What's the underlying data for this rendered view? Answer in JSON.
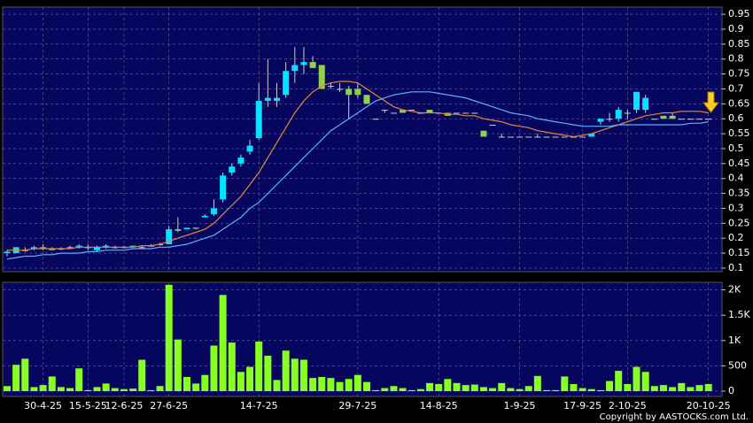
{
  "chart_data": {
    "type": "candlestick",
    "categories": [
      null,
      null,
      null,
      null,
      "30-4-25",
      null,
      null,
      null,
      null,
      "15-5-25",
      null,
      null,
      null,
      "12-6-25",
      null,
      null,
      null,
      null,
      "27-6-25",
      null,
      null,
      null,
      null,
      null,
      null,
      null,
      null,
      null,
      "14-7-25",
      null,
      null,
      null,
      null,
      null,
      null,
      null,
      null,
      null,
      null,
      "29-7-25",
      null,
      null,
      null,
      null,
      null,
      null,
      null,
      null,
      "14-8-25",
      null,
      null,
      null,
      null,
      null,
      null,
      null,
      null,
      "1-9-25",
      null,
      null,
      null,
      null,
      null,
      null,
      "17-9-25",
      null,
      null,
      null,
      null,
      "2-10-25",
      null,
      null,
      null,
      null,
      null,
      null,
      null,
      null,
      "20-10-25"
    ],
    "open": [
      0.15,
      0.15,
      0.16,
      0.165,
      0.17,
      0.165,
      0.165,
      0.17,
      0.17,
      0.17,
      0.16,
      0.17,
      0.17,
      0.17,
      0.17,
      0.17,
      0.175,
      0.18,
      0.18,
      0.23,
      0.23,
      0.235,
      0.27,
      0.28,
      0.33,
      0.42,
      0.45,
      0.49,
      0.535,
      0.66,
      0.66,
      0.68,
      0.76,
      0.78,
      0.79,
      0.78,
      0.71,
      0.7,
      0.7,
      0.7,
      0.68,
      0.6,
      0.63,
      0.62,
      0.63,
      0.63,
      0.62,
      0.63,
      0.62,
      0.62,
      0.62,
      0.62,
      0.62,
      0.56,
      0.58,
      0.54,
      0.54,
      0.54,
      0.54,
      0.54,
      0.54,
      0.54,
      0.54,
      0.54,
      0.54,
      0.54,
      0.59,
      0.6,
      0.6,
      0.62,
      0.63,
      0.63,
      0.6,
      0.61,
      0.61,
      0.6,
      0.6,
      0.6,
      0.6
    ],
    "high": [
      0.16,
      0.17,
      0.17,
      0.175,
      0.18,
      0.17,
      0.17,
      0.175,
      0.18,
      0.18,
      0.175,
      0.18,
      0.175,
      0.175,
      0.175,
      0.175,
      0.18,
      0.185,
      0.24,
      0.27,
      0.235,
      0.235,
      0.28,
      0.33,
      0.42,
      0.45,
      0.48,
      0.53,
      0.72,
      0.8,
      0.72,
      0.79,
      0.84,
      0.84,
      0.81,
      0.78,
      0.72,
      0.72,
      0.71,
      0.72,
      0.68,
      0.6,
      0.63,
      0.62,
      0.63,
      0.63,
      0.62,
      0.63,
      0.62,
      0.62,
      0.62,
      0.62,
      0.62,
      0.56,
      0.58,
      0.55,
      0.54,
      0.54,
      0.54,
      0.55,
      0.54,
      0.54,
      0.54,
      0.54,
      0.54,
      0.55,
      0.6,
      0.62,
      0.64,
      0.63,
      0.69,
      0.68,
      0.6,
      0.61,
      0.62,
      0.6,
      0.6,
      0.6,
      0.6
    ],
    "low": [
      0.14,
      0.15,
      0.155,
      0.16,
      0.16,
      0.16,
      0.16,
      0.165,
      0.165,
      0.16,
      0.155,
      0.165,
      0.165,
      0.17,
      0.17,
      0.165,
      0.175,
      0.175,
      0.18,
      0.22,
      0.23,
      0.23,
      0.27,
      0.275,
      0.32,
      0.41,
      0.44,
      0.48,
      0.53,
      0.64,
      0.64,
      0.67,
      0.72,
      0.75,
      0.77,
      0.7,
      0.7,
      0.69,
      0.6,
      0.67,
      0.65,
      0.6,
      0.62,
      0.62,
      0.62,
      0.63,
      0.62,
      0.62,
      0.62,
      0.61,
      0.62,
      0.62,
      0.62,
      0.54,
      0.58,
      0.54,
      0.54,
      0.54,
      0.54,
      0.54,
      0.54,
      0.54,
      0.54,
      0.54,
      0.54,
      0.54,
      0.58,
      0.59,
      0.59,
      0.6,
      0.62,
      0.62,
      0.6,
      0.6,
      0.6,
      0.6,
      0.6,
      0.6,
      0.6
    ],
    "close": [
      0.155,
      0.17,
      0.16,
      0.17,
      0.165,
      0.16,
      0.165,
      0.17,
      0.175,
      0.17,
      0.17,
      0.175,
      0.17,
      0.17,
      0.175,
      0.17,
      0.175,
      0.18,
      0.23,
      0.225,
      0.235,
      0.235,
      0.275,
      0.3,
      0.41,
      0.44,
      0.47,
      0.51,
      0.66,
      0.67,
      0.67,
      0.76,
      0.78,
      0.79,
      0.77,
      0.7,
      0.71,
      0.7,
      0.68,
      0.68,
      0.65,
      0.6,
      0.63,
      0.62,
      0.62,
      0.63,
      0.62,
      0.62,
      0.62,
      0.61,
      0.62,
      0.62,
      0.62,
      0.54,
      0.58,
      0.54,
      0.54,
      0.54,
      0.54,
      0.54,
      0.54,
      0.54,
      0.54,
      0.54,
      0.54,
      0.55,
      0.6,
      0.6,
      0.63,
      0.62,
      0.69,
      0.67,
      0.6,
      0.6,
      0.6,
      0.6,
      0.6,
      0.6,
      0.6
    ],
    "up_color": "#00e5ff",
    "down_color": "#8fd14f",
    "flat_color": "#cccccc",
    "lines": [
      {
        "color": "#e8843a",
        "values": [
          0.16,
          0.16,
          0.16,
          0.165,
          0.165,
          0.165,
          0.165,
          0.165,
          0.17,
          0.17,
          0.17,
          0.17,
          0.17,
          0.17,
          0.17,
          0.175,
          0.175,
          0.18,
          0.19,
          0.2,
          0.21,
          0.22,
          0.23,
          0.25,
          0.28,
          0.31,
          0.34,
          0.38,
          0.42,
          0.47,
          0.52,
          0.57,
          0.62,
          0.66,
          0.69,
          0.71,
          0.72,
          0.725,
          0.725,
          0.72,
          0.7,
          0.68,
          0.66,
          0.64,
          0.63,
          0.625,
          0.62,
          0.62,
          0.62,
          0.615,
          0.615,
          0.61,
          0.61,
          0.6,
          0.595,
          0.59,
          0.58,
          0.575,
          0.57,
          0.56,
          0.555,
          0.55,
          0.545,
          0.54,
          0.545,
          0.55,
          0.56,
          0.57,
          0.58,
          0.59,
          0.6,
          0.61,
          0.615,
          0.62,
          0.62,
          0.625,
          0.625,
          0.625,
          0.62
        ]
      },
      {
        "color": "#5fb0ff",
        "values": [
          0.13,
          0.135,
          0.14,
          0.14,
          0.145,
          0.145,
          0.15,
          0.15,
          0.15,
          0.155,
          0.155,
          0.16,
          0.16,
          0.16,
          0.165,
          0.165,
          0.165,
          0.17,
          0.17,
          0.175,
          0.18,
          0.19,
          0.2,
          0.21,
          0.23,
          0.25,
          0.27,
          0.3,
          0.32,
          0.35,
          0.38,
          0.41,
          0.44,
          0.47,
          0.5,
          0.53,
          0.56,
          0.58,
          0.6,
          0.62,
          0.64,
          0.66,
          0.67,
          0.68,
          0.685,
          0.69,
          0.69,
          0.69,
          0.685,
          0.68,
          0.675,
          0.67,
          0.66,
          0.65,
          0.64,
          0.63,
          0.62,
          0.615,
          0.61,
          0.6,
          0.595,
          0.59,
          0.585,
          0.58,
          0.575,
          0.575,
          0.575,
          0.575,
          0.58,
          0.58,
          0.58,
          0.58,
          0.58,
          0.58,
          0.58,
          0.58,
          0.585,
          0.585,
          0.59
        ]
      }
    ],
    "ylim": [
      0.088,
      0.974
    ],
    "yticks": [
      0.1,
      0.15,
      0.2,
      0.25,
      0.3,
      0.35,
      0.4,
      0.45,
      0.5,
      0.55,
      0.6,
      0.65,
      0.7,
      0.75,
      0.8,
      0.85,
      0.9,
      0.95
    ],
    "grid": true,
    "volume": {
      "color": "#88ff22",
      "values": [
        100,
        520,
        640,
        80,
        120,
        290,
        80,
        60,
        450,
        20,
        80,
        150,
        60,
        40,
        50,
        620,
        20,
        100,
        2100,
        1020,
        280,
        150,
        320,
        900,
        1900,
        960,
        380,
        480,
        980,
        700,
        220,
        800,
        640,
        620,
        260,
        280,
        260,
        180,
        240,
        320,
        180,
        20,
        60,
        100,
        60,
        20,
        40,
        160,
        140,
        240,
        160,
        120,
        130,
        80,
        60,
        160,
        60,
        40,
        100,
        300,
        20,
        20,
        290,
        140,
        60,
        40,
        20,
        200,
        400,
        140,
        480,
        380,
        100,
        120,
        80,
        160,
        80,
        120,
        140
      ],
      "ylim": [
        0,
        2150
      ],
      "yticks": [
        0,
        500,
        {
          "value": 1000,
          "label": "1K"
        },
        {
          "value": 1500,
          "label": "1.5K"
        },
        {
          "value": 2000,
          "label": "2K"
        }
      ]
    },
    "footer": "Copyright by AASTOCKS.com Ltd."
  }
}
